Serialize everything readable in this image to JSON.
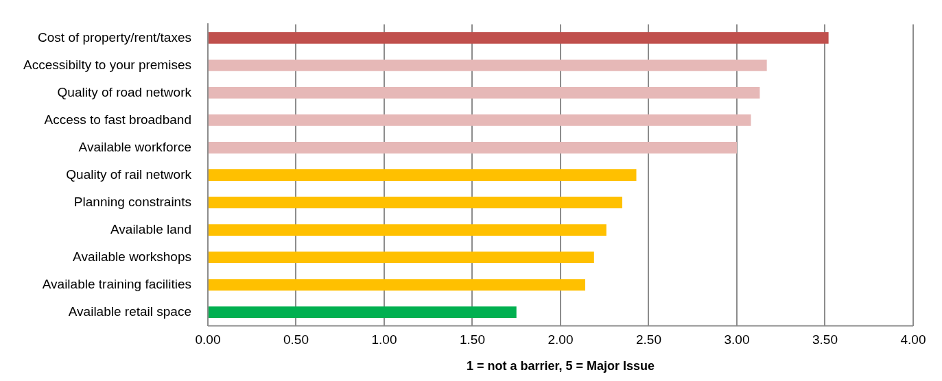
{
  "chart_data": {
    "type": "bar",
    "orientation": "horizontal",
    "xlabel": "1 = not a barrier, 5 = Major Issue",
    "categories": [
      "Cost of property/rent/taxes",
      "Accessibilty to your premises",
      "Quality of road network",
      "Access to fast broadband",
      "Available workforce",
      "Quality of rail network",
      "Planning constraints",
      "Available land",
      "Available workshops",
      "Available training facilities",
      "Available retail space"
    ],
    "values": [
      3.52,
      3.17,
      3.13,
      3.08,
      3.0,
      2.43,
      2.35,
      2.26,
      2.19,
      2.14,
      1.75
    ],
    "colors": [
      "#c0504d",
      "#e6b8b7",
      "#e6b8b7",
      "#e6b8b7",
      "#e6b8b7",
      "#ffc000",
      "#ffc000",
      "#ffc000",
      "#ffc000",
      "#ffc000",
      "#00b050"
    ],
    "xlim": [
      0,
      4
    ],
    "xticks": [
      {
        "value": 0,
        "label": "0.00"
      },
      {
        "value": 0.5,
        "label": "0.50"
      },
      {
        "value": 1,
        "label": "1.00"
      },
      {
        "value": 1.5,
        "label": "1.50"
      },
      {
        "value": 2,
        "label": "2.00"
      },
      {
        "value": 2.5,
        "label": "2.50"
      },
      {
        "value": 3,
        "label": "3.00"
      },
      {
        "value": 3.5,
        "label": "3.50"
      },
      {
        "value": 4,
        "label": "4.00"
      }
    ],
    "grid": "x",
    "legend": false
  }
}
